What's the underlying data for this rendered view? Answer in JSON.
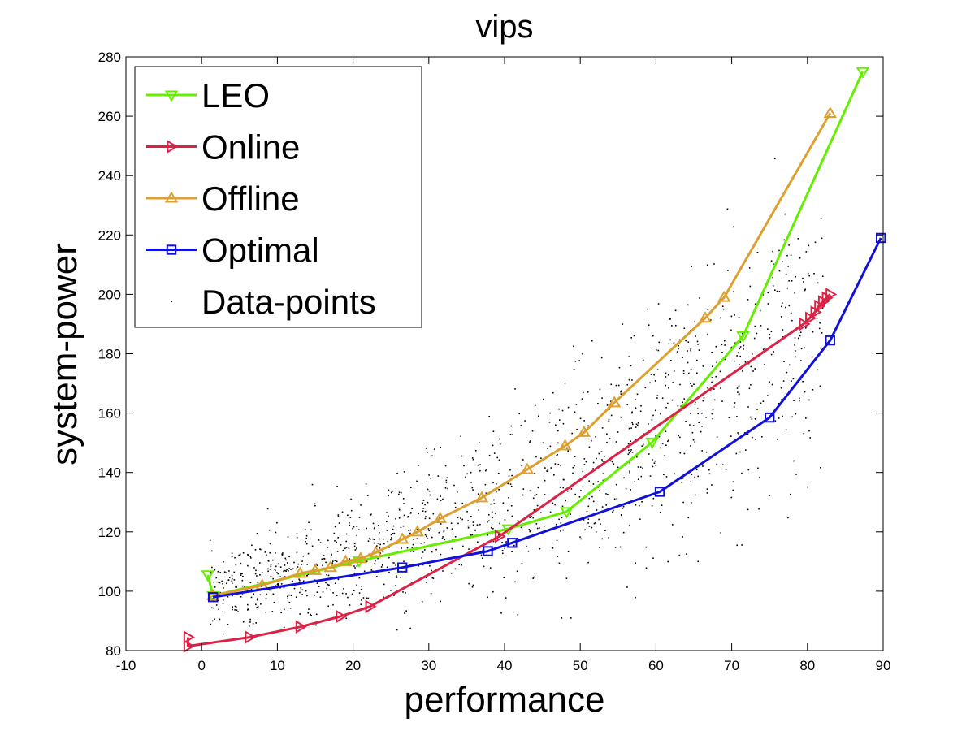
{
  "chart_data": {
    "type": "line",
    "title": "vips",
    "xlabel": "performance",
    "ylabel": "system-power",
    "xlim": [
      -10,
      90
    ],
    "ylim": [
      80,
      280
    ],
    "xticks": [
      -10,
      0,
      10,
      20,
      30,
      40,
      50,
      60,
      70,
      80,
      90
    ],
    "yticks": [
      80,
      100,
      120,
      140,
      160,
      180,
      200,
      220,
      240,
      260,
      280
    ],
    "grid": false,
    "legend_position": "top-left",
    "series": [
      {
        "name": "LEO",
        "color": "#66ee00",
        "marker": "triangle-down",
        "x": [
          0.8,
          1.5,
          20.8,
          40.5,
          48.2,
          59.5,
          71.5,
          87.3
        ],
        "y": [
          105.5,
          98.5,
          110.2,
          121.0,
          126.8,
          150.2,
          186.0,
          275.0
        ]
      },
      {
        "name": "Online",
        "color": "#dc2244",
        "marker": "triangle-right",
        "x": [
          -1.8,
          -1.8,
          6.3,
          13.0,
          18.3,
          22.2,
          39.3,
          79.5,
          80.3,
          81.0,
          81.5,
          82.0,
          82.5,
          83.0
        ],
        "y": [
          84.5,
          81.5,
          84.5,
          88.0,
          91.5,
          94.8,
          118.5,
          190.0,
          192.0,
          194.0,
          196.0,
          197.5,
          198.8,
          200.0
        ]
      },
      {
        "name": "Offline",
        "color": "#dda030",
        "marker": "triangle-up",
        "x": [
          1.5,
          8.0,
          13.0,
          15.0,
          17.0,
          19.0,
          21.0,
          23.0,
          26.5,
          28.5,
          31.5,
          37.0,
          43.0,
          48.0,
          50.5,
          54.5,
          66.5,
          69.0,
          83.0
        ],
        "y": [
          98.5,
          102.0,
          106.0,
          107.0,
          108.0,
          110.0,
          111.0,
          113.0,
          117.5,
          120.0,
          124.5,
          131.5,
          141.0,
          149.0,
          153.5,
          163.5,
          192.0,
          199.0,
          261.0
        ]
      },
      {
        "name": "Optimal",
        "color": "#1010dd",
        "marker": "square",
        "x": [
          1.5,
          26.5,
          37.8,
          41.0,
          60.5,
          75.0,
          83.0,
          89.7
        ],
        "y": [
          98.0,
          108.0,
          113.5,
          116.3,
          133.5,
          158.5,
          184.5,
          219.0
        ]
      }
    ],
    "scatter_series": {
      "name": "Data-points",
      "color": "#000000",
      "marker": "point"
    }
  }
}
